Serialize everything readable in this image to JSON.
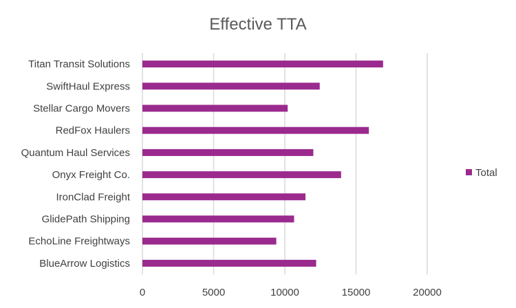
{
  "chart_data": {
    "type": "bar",
    "orientation": "horizontal",
    "title": "Effective TTA",
    "xlabel": "",
    "ylabel": "",
    "categories": [
      "BlueArrow Logistics",
      "EchoLine Freightways",
      "GlidePath Shipping",
      "IronClad Freight",
      "Onyx Freight Co.",
      "Quantum Haul Services",
      "RedFox Haulers",
      "Stellar Cargo Movers",
      "SwiftHaul Express",
      "Titan Transit Solutions"
    ],
    "series": [
      {
        "name": "Total",
        "color": "#9b2a8e",
        "values": [
          12200,
          9400,
          10650,
          11450,
          13950,
          12000,
          15900,
          10200,
          12450,
          16900
        ]
      }
    ],
    "xlim": [
      0,
      20000
    ],
    "xticks": [
      0,
      5000,
      10000,
      15000,
      20000
    ],
    "grid": true,
    "legend_position": "right"
  }
}
